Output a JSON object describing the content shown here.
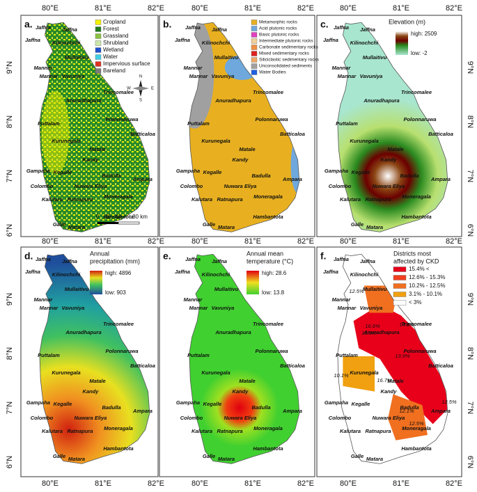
{
  "panels": [
    {
      "label": "a.",
      "legend": {
        "items": [
          {
            "name": "Cropland",
            "color": "#f2f200"
          },
          {
            "name": "Forest",
            "color": "#1d7a1d"
          },
          {
            "name": "Grassland",
            "color": "#8bc540"
          },
          {
            "name": "Shrubland",
            "color": "#cde8a8"
          },
          {
            "name": "Wetland",
            "color": "#1f4fd0"
          },
          {
            "name": "Water",
            "color": "#40d0e8"
          },
          {
            "name": "Impervious surface",
            "color": "#e03020"
          },
          {
            "name": "Bareland",
            "color": "#7a7a7a"
          }
        ]
      },
      "scale_bar": [
        "0",
        "20",
        "40",
        "80 km"
      ],
      "compass": [
        "N",
        "E",
        "S",
        "W"
      ]
    },
    {
      "label": "b.",
      "legend": {
        "items": [
          {
            "name": "Metamorphic rocks",
            "color": "#e8b020"
          },
          {
            "name": "Acid plutonic rocks",
            "color": "#6fa8dc"
          },
          {
            "name": "Basic plutonic rocks",
            "color": "#e040c0"
          },
          {
            "name": "Intermediate plutonic rocks",
            "color": "#f0d098"
          },
          {
            "name": "Carbonate sedimentary rocks",
            "color": "#f09040"
          },
          {
            "name": "Mixed sedimentary rocks",
            "color": "#e02020"
          },
          {
            "name": "Siliciclastic sedimentary rocks",
            "color": "#f0a868"
          },
          {
            "name": "Unconsolidated sediments",
            "color": "#a0a0a0"
          },
          {
            "name": "Water Bodies",
            "color": "#2060e0"
          }
        ]
      }
    },
    {
      "label": "c.",
      "legend": {
        "title": [
          "Elevation (m)"
        ],
        "high": "high: 2509",
        "low": "low: -2"
      }
    },
    {
      "label": "d.",
      "legend": {
        "title": [
          "Annual",
          "precipitation (mm)"
        ],
        "high": "high: 4896",
        "low": "low: 903"
      }
    },
    {
      "label": "e.",
      "legend": {
        "title": [
          "Annual mean",
          "temperature (°C)"
        ],
        "high": "high: 28.6",
        "low": "low: 13.8"
      }
    },
    {
      "label": "f.",
      "legend": {
        "title": [
          "Districts most",
          "affected by CKD"
        ],
        "items": [
          {
            "name": "15.4% <",
            "color": "#e8001a"
          },
          {
            "name": "12.6% - 15.3%",
            "color": "#f04020"
          },
          {
            "name": "10.2% - 12.5%",
            "color": "#f07020"
          },
          {
            "name": "3.1% - 10.1%",
            "color": "#f0a010"
          },
          {
            "name": "< 3%",
            "color": "#ffffff"
          }
        ]
      },
      "rate_labels": [
        "12.5%",
        "16.6%",
        "14.8%",
        "16.9%",
        "13.9%",
        "10.1%",
        "16.7%",
        "12.1%",
        "12.5%",
        "12.5%"
      ]
    }
  ],
  "districts": [
    "Jaffna",
    "Jaffna",
    "Jaffna",
    "Kilinochchi",
    "Mullaitivu",
    "Mannar",
    "Mannar",
    "Vavuniya",
    "Trincomalee",
    "Anuradhapura",
    "Puttalam",
    "Polonnaruwa",
    "Batticaloa",
    "Kurunegala",
    "Matale",
    "Kandy",
    "Gampaha",
    "Kegalle",
    "Badulla",
    "Ampara",
    "Colombo",
    "Nuwara Eliya",
    "Moneragala",
    "Kalutara",
    "Ratnapura",
    "Hambantota",
    "Galle",
    "Matara"
  ],
  "lon_ticks": [
    {
      "value": 80,
      "label": "80°E"
    },
    {
      "value": 81,
      "label": "81°E"
    },
    {
      "value": 82,
      "label": "82°E"
    }
  ],
  "lat_ticks": [
    {
      "value": 9,
      "label": "9°N"
    },
    {
      "value": 8,
      "label": "8°N"
    },
    {
      "value": 7,
      "label": "7°N"
    },
    {
      "value": 6,
      "label": "6°N"
    }
  ]
}
